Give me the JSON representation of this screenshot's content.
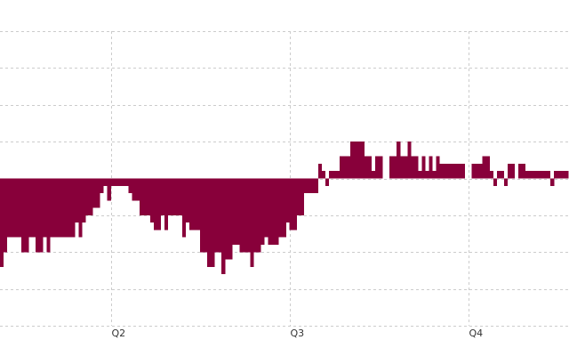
{
  "chart_data": {
    "type": "bar",
    "title": "",
    "xlabel": "",
    "ylabel": "",
    "ylim": [
      -4,
      4
    ],
    "grid": true,
    "legend": "none",
    "color": "#88003a",
    "x_ticks": [
      {
        "label": "Q2",
        "index": 31
      },
      {
        "label": "Q3",
        "index": 81
      },
      {
        "label": "Q4",
        "index": 131
      }
    ],
    "values": [
      -2.4,
      -2.0,
      -1.6,
      -1.6,
      -1.6,
      -1.6,
      -2.0,
      -2.0,
      -1.6,
      -1.6,
      -2.0,
      -2.0,
      -1.6,
      -2.0,
      -1.6,
      -1.6,
      -1.6,
      -1.6,
      -1.6,
      -1.6,
      -1.6,
      -1.2,
      -1.6,
      -1.2,
      -1.0,
      -1.0,
      -0.8,
      -0.8,
      -0.4,
      -0.2,
      -0.6,
      -0.2,
      -0.2,
      -0.2,
      -0.2,
      -0.2,
      -0.4,
      -0.6,
      -0.6,
      -1.0,
      -1.0,
      -1.0,
      -1.2,
      -1.4,
      -1.4,
      -1.0,
      -1.4,
      -1.0,
      -1.0,
      -1.0,
      -1.0,
      -1.6,
      -1.2,
      -1.4,
      -1.4,
      -1.4,
      -2.0,
      -2.0,
      -2.4,
      -2.4,
      -2.0,
      -2.0,
      -2.6,
      -2.2,
      -2.2,
      -1.8,
      -1.8,
      -2.0,
      -2.0,
      -2.0,
      -2.4,
      -2.0,
      -2.0,
      -1.8,
      -1.6,
      -1.8,
      -1.8,
      -1.8,
      -1.6,
      -1.6,
      -1.2,
      -1.4,
      -1.4,
      -1.0,
      -1.0,
      -0.4,
      -0.4,
      -0.4,
      -0.4,
      0.4,
      0.2,
      -0.2,
      0.2,
      0.2,
      0.2,
      0.6,
      0.6,
      0.6,
      1.0,
      1.0,
      1.0,
      1.0,
      0.6,
      0.6,
      0.2,
      0.6,
      0.6,
      0.0,
      0.0,
      0.6,
      0.6,
      1.0,
      0.6,
      0.6,
      1.0,
      0.6,
      0.6,
      0.2,
      0.6,
      0.2,
      0.6,
      0.2,
      0.6,
      0.4,
      0.4,
      0.4,
      0.4,
      0.4,
      0.4,
      0.4,
      0.0,
      0.0,
      0.4,
      0.4,
      0.4,
      0.6,
      0.6,
      0.2,
      -0.2,
      0.2,
      0.2,
      -0.2,
      0.4,
      0.4,
      0.0,
      0.4,
      0.4,
      0.2,
      0.2,
      0.2,
      0.2,
      0.2,
      0.2,
      0.2,
      -0.2,
      0.2,
      0.2,
      0.2,
      0.2
    ]
  }
}
